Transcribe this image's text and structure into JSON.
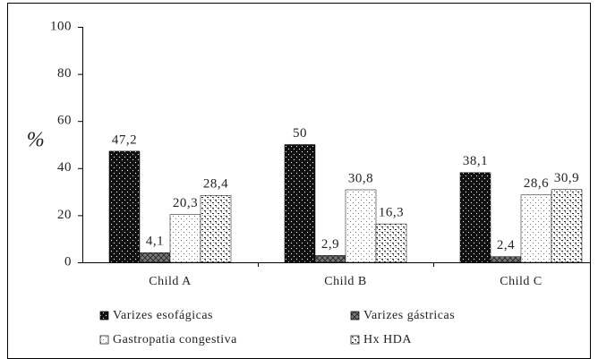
{
  "chart_data": {
    "type": "bar",
    "categories": [
      "Child A",
      "Child B",
      "Child C"
    ],
    "y_label": "%",
    "series": [
      {
        "name": "Varizes esofágicas",
        "color": "#111111",
        "values": [
          47.2,
          50,
          38.1
        ],
        "value_labels": [
          "47,2",
          "50",
          "38,1"
        ]
      },
      {
        "name": "Varizes gástricas",
        "color": "#777777",
        "values": [
          4.1,
          2.9,
          2.4
        ],
        "value_labels": [
          "4,1",
          "2,9",
          "2,4"
        ]
      },
      {
        "name": "Gastropatia congestiva",
        "color": "#ffffff",
        "values": [
          20.3,
          30.8,
          28.6
        ],
        "value_labels": [
          "20,3",
          "30,8",
          "28,6"
        ]
      },
      {
        "name": "Hx HDA",
        "color": "#ffffff",
        "values": [
          28.4,
          16.3,
          30.9
        ],
        "value_labels": [
          "28,4",
          "16,3",
          "30,9"
        ]
      }
    ],
    "ylim": [
      0,
      100
    ],
    "yticks": [
      0,
      20,
      40,
      60,
      80,
      100
    ],
    "grid": false,
    "legend": "bottom"
  }
}
